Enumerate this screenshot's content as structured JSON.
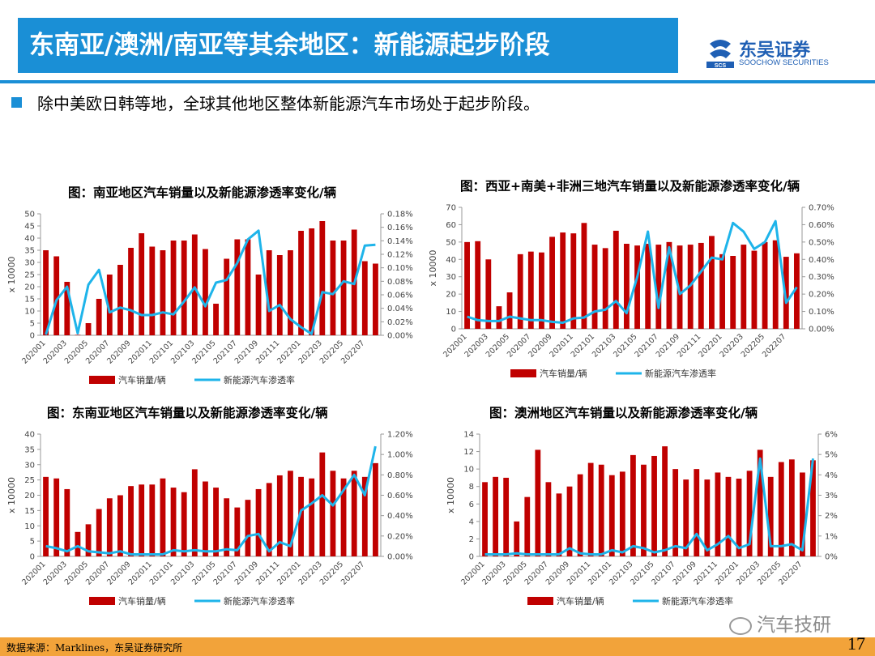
{
  "page": {
    "title": "东南亚/澳洲/南亚等其余地区：新能源起步阶段",
    "brand_name": "东吴证券",
    "brand_sub": "SOOCHOW SECURITIES",
    "brand_mark": "SCS",
    "intro": "除中美欧日韩等地，全球其他地区整体新能源汽车市场处于起步阶段。",
    "source": "数据来源：Marklines，东吴证券研究所",
    "page_number": "17",
    "watermark": "汽车技研",
    "accent": "#1a8fd6",
    "footer_color": "#f2a33a",
    "bar_color": "#c00000",
    "line_color": "#1eb4ea"
  },
  "chart_data": [
    {
      "type": "bar",
      "title": "图：南亚地区汽车销量以及新能源渗透率变化/辆",
      "ylabel": "x 10000",
      "categories": [
        "202001",
        "202002",
        "202003",
        "202004",
        "202005",
        "202006",
        "202007",
        "202008",
        "202009",
        "202010",
        "202011",
        "202012",
        "202101",
        "202102",
        "202103",
        "202104",
        "202105",
        "202106",
        "202107",
        "202108",
        "202109",
        "202110",
        "202111",
        "202112",
        "202201",
        "202202",
        "202203",
        "202204",
        "202205",
        "202206",
        "202207",
        "202208"
      ],
      "x_tick_labels": [
        "202001",
        "202003",
        "202005",
        "202007",
        "202009",
        "202011",
        "202101",
        "202103",
        "202105",
        "202107",
        "202109",
        "202111",
        "202201",
        "202203",
        "202205",
        "202207"
      ],
      "ylim": [
        0,
        50
      ],
      "yticks": [
        "0",
        "5",
        "10",
        "15",
        "20",
        "25",
        "30",
        "35",
        "40",
        "45",
        "50"
      ],
      "y2lim": [
        0,
        0.18
      ],
      "y2ticks": [
        "0.00%",
        "0.02%",
        "0.04%",
        "0.06%",
        "0.08%",
        "0.10%",
        "0.12%",
        "0.14%",
        "0.16%",
        "0.18%"
      ],
      "legend": [
        "汽车销量/辆",
        "新能源汽车渗透率"
      ],
      "legend_position": "bottom",
      "series": [
        {
          "name": "汽车销量/辆",
          "type": "bar",
          "axis": "left",
          "values": [
            35,
            32.5,
            22,
            0.2,
            5,
            15,
            25,
            29,
            36,
            42,
            36.5,
            35,
            39,
            39,
            41.5,
            35.5,
            13,
            31.5,
            39.5,
            39.5,
            25,
            35,
            33,
            35,
            43,
            44,
            47,
            39,
            39,
            43.5,
            30.5,
            29.5
          ]
        },
        {
          "name": "新能源汽车渗透率",
          "type": "line",
          "axis": "right",
          "values": [
            0.001,
            0.052,
            0.072,
            0.003,
            0.075,
            0.097,
            0.034,
            0.041,
            0.037,
            0.03,
            0.03,
            0.034,
            0.031,
            0.05,
            0.071,
            0.043,
            0.078,
            0.082,
            0.107,
            0.142,
            0.155,
            0.036,
            0.045,
            0.024,
            0.012,
            0.002,
            0.064,
            0.061,
            0.08,
            0.076,
            0.133,
            0.134
          ]
        }
      ]
    },
    {
      "type": "bar",
      "title": "图：西亚+南美+非洲三地汽车销量以及新能源渗透率变化/辆",
      "ylabel": "x 10000",
      "categories": [
        "202001",
        "202002",
        "202003",
        "202004",
        "202005",
        "202006",
        "202007",
        "202008",
        "202009",
        "202010",
        "202011",
        "202012",
        "202101",
        "202102",
        "202103",
        "202104",
        "202105",
        "202106",
        "202107",
        "202108",
        "202109",
        "202110",
        "202111",
        "202112",
        "202201",
        "202202",
        "202203",
        "202204",
        "202205",
        "202206",
        "202207",
        "202208"
      ],
      "x_tick_labels": [
        "202001",
        "202003",
        "202005",
        "202007",
        "202009",
        "202011",
        "202101",
        "202103",
        "202105",
        "202107",
        "202109",
        "202111",
        "202201",
        "202203",
        "202205",
        "202207"
      ],
      "ylim": [
        0,
        70
      ],
      "yticks": [
        "0",
        "10",
        "20",
        "30",
        "40",
        "50",
        "60",
        "70"
      ],
      "y2lim": [
        0,
        0.7
      ],
      "y2ticks": [
        "0.00%",
        "0.10%",
        "0.20%",
        "0.30%",
        "0.40%",
        "0.50%",
        "0.60%",
        "0.70%"
      ],
      "legend": [
        "汽车销量/辆",
        "新能源汽车渗透率"
      ],
      "legend_position": "bottom",
      "series": [
        {
          "name": "汽车销量/辆",
          "type": "bar",
          "axis": "left",
          "values": [
            50,
            50.5,
            40,
            13,
            21,
            43,
            44.5,
            44,
            53,
            55.5,
            55,
            61,
            48.5,
            46.5,
            56.5,
            49,
            48,
            49,
            48.5,
            50,
            48,
            48.5,
            49.5,
            53.5,
            43,
            42,
            48.5,
            45,
            50,
            51,
            41.5,
            43.5
          ]
        },
        {
          "name": "新能源汽车渗透率",
          "type": "line",
          "axis": "right",
          "values": [
            0.07,
            0.05,
            0.045,
            0.045,
            0.07,
            0.06,
            0.05,
            0.05,
            0.04,
            0.035,
            0.06,
            0.065,
            0.1,
            0.11,
            0.16,
            0.09,
            0.3,
            0.56,
            0.12,
            0.47,
            0.2,
            0.25,
            0.33,
            0.41,
            0.4,
            0.61,
            0.56,
            0.46,
            0.5,
            0.62,
            0.15,
            0.24
          ]
        }
      ]
    },
    {
      "type": "bar",
      "title": "图：东南亚地区汽车销量以及新能源渗透率变化/辆",
      "ylabel": "x 10000",
      "categories": [
        "202001",
        "202002",
        "202003",
        "202004",
        "202005",
        "202006",
        "202007",
        "202008",
        "202009",
        "202010",
        "202011",
        "202012",
        "202101",
        "202102",
        "202103",
        "202104",
        "202105",
        "202106",
        "202107",
        "202108",
        "202109",
        "202110",
        "202111",
        "202112",
        "202201",
        "202202",
        "202203",
        "202204",
        "202205",
        "202206",
        "202207",
        "202208"
      ],
      "x_tick_labels": [
        "202001",
        "202003",
        "202005",
        "202007",
        "202009",
        "202011",
        "202101",
        "202103",
        "202105",
        "202107",
        "202109",
        "202111",
        "202201",
        "202203",
        "202205",
        "202207"
      ],
      "ylim": [
        0,
        40
      ],
      "yticks": [
        "0",
        "5",
        "10",
        "15",
        "20",
        "25",
        "30",
        "35",
        "40"
      ],
      "y2lim": [
        0,
        1.2
      ],
      "y2ticks": [
        "0.00%",
        "0.20%",
        "0.40%",
        "0.60%",
        "0.80%",
        "1.00%",
        "1.20%"
      ],
      "legend": [
        "汽车销量/辆",
        "新能源汽车渗透率"
      ],
      "legend_position": "bottom",
      "series": [
        {
          "name": "汽车销量/辆",
          "type": "bar",
          "axis": "left",
          "values": [
            26,
            25.5,
            22,
            8,
            10.5,
            15.5,
            19,
            20,
            23,
            23.5,
            23.5,
            25.5,
            22.5,
            21,
            28.5,
            24.5,
            22.5,
            19,
            16,
            18.5,
            22,
            24,
            26.5,
            28,
            26,
            25.5,
            34,
            28,
            25.5,
            28,
            26,
            30.5
          ]
        },
        {
          "name": "新能源汽车渗透率",
          "type": "line",
          "axis": "right",
          "values": [
            0.1,
            0.08,
            0.05,
            0.1,
            0.05,
            0.04,
            0.03,
            0.05,
            0.02,
            0.02,
            0.02,
            0.02,
            0.06,
            0.05,
            0.06,
            0.05,
            0.05,
            0.07,
            0.06,
            0.2,
            0.22,
            0.05,
            0.14,
            0.1,
            0.45,
            0.52,
            0.6,
            0.5,
            0.65,
            0.8,
            0.6,
            1.08
          ]
        }
      ]
    },
    {
      "type": "bar",
      "title": "图：澳洲地区汽车销量以及新能源渗透率变化/辆",
      "ylabel": "x 10000",
      "categories": [
        "202001",
        "202002",
        "202003",
        "202004",
        "202005",
        "202006",
        "202007",
        "202008",
        "202009",
        "202010",
        "202011",
        "202012",
        "202101",
        "202102",
        "202103",
        "202104",
        "202105",
        "202106",
        "202107",
        "202108",
        "202109",
        "202110",
        "202111",
        "202112",
        "202201",
        "202202",
        "202203",
        "202204",
        "202205",
        "202206",
        "202207",
        "202208"
      ],
      "x_tick_labels": [
        "202001",
        "202003",
        "202005",
        "202007",
        "202009",
        "202011",
        "202101",
        "202103",
        "202105",
        "202107",
        "202109",
        "202111",
        "202201",
        "202203",
        "202205",
        "202207"
      ],
      "ylim": [
        0,
        14
      ],
      "yticks": [
        "0",
        "2",
        "4",
        "6",
        "8",
        "10",
        "12",
        "14"
      ],
      "y2lim": [
        0,
        6
      ],
      "y2ticks": [
        "0%",
        "1%",
        "2%",
        "3%",
        "4%",
        "5%",
        "6%"
      ],
      "legend": [
        "汽车销量/辆",
        "新能源汽车渗透率"
      ],
      "legend_position": "bottom",
      "series": [
        {
          "name": "汽车销量/辆",
          "type": "bar",
          "axis": "left",
          "values": [
            8.5,
            9.1,
            9,
            4,
            6.8,
            12.2,
            8.5,
            7.2,
            8,
            9.4,
            10.7,
            10.5,
            9.3,
            9.7,
            11.6,
            10.5,
            11.5,
            12.6,
            10,
            8.8,
            10,
            8.8,
            9.6,
            9.1,
            8.9,
            9.8,
            12.2,
            9.1,
            10.8,
            11.1,
            9.6,
            11
          ]
        },
        {
          "name": "新能源汽车渗透率",
          "type": "line",
          "axis": "right",
          "values": [
            0.1,
            0.1,
            0.1,
            0.15,
            0.1,
            0.1,
            0.1,
            0.1,
            0.4,
            0.15,
            0.1,
            0.1,
            0.3,
            0.2,
            0.5,
            0.4,
            0.2,
            0.3,
            0.5,
            0.4,
            1.1,
            0.3,
            0.6,
            1.0,
            0.4,
            0.6,
            4.8,
            0.5,
            0.5,
            0.6,
            0.3,
            4.8
          ]
        }
      ]
    }
  ]
}
